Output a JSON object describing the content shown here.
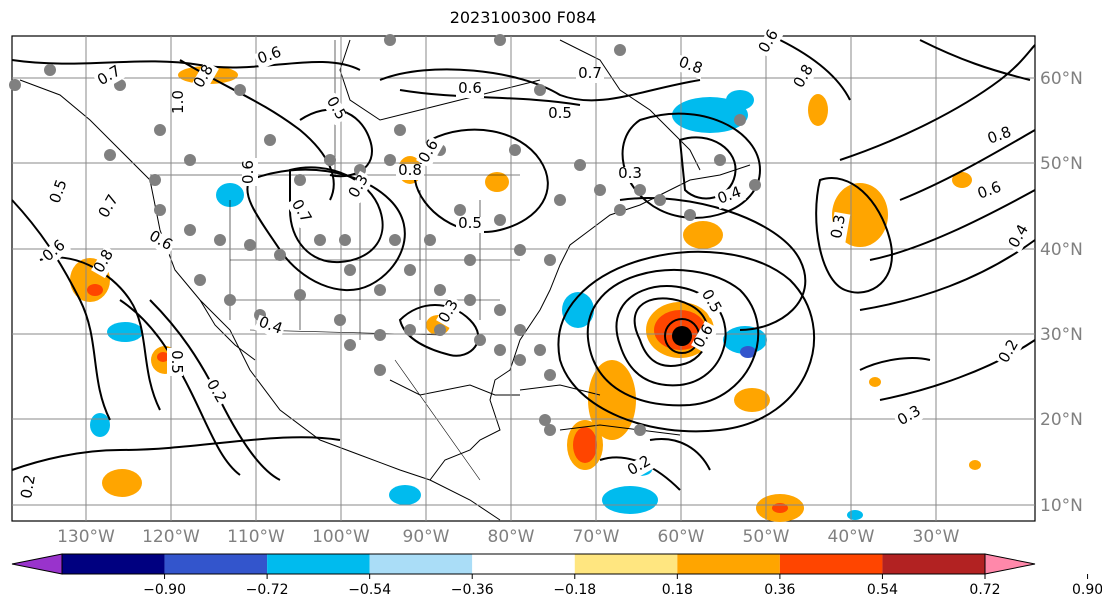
{
  "title": "2023100300 F084",
  "latitude_labels": [
    "60°N",
    "50°N",
    "40°N",
    "30°N",
    "20°N",
    "10°N"
  ],
  "longitude_labels": [
    "130°W",
    "120°W",
    "110°W",
    "100°W",
    "90°W",
    "80°W",
    "70°W",
    "60°W",
    "50°W",
    "40°W",
    "30°W"
  ],
  "contour_labels": [
    "0.6",
    "0.7",
    "0.8",
    "1.0",
    "0.6",
    "0.5",
    "0.8",
    "0.6",
    "0.5",
    "0.7",
    "0.6",
    "0.3",
    "0.7",
    "0.6",
    "0.5",
    "0.8",
    "0.4",
    "0.3",
    "0.4",
    "0.6",
    "0.5",
    "0.8",
    "0.2",
    "0.3",
    "0.2",
    "0.3",
    "0.3",
    "0.2",
    "0.4",
    "0.5",
    "0.6",
    "0.8",
    "0.2",
    "0.7",
    "0.6",
    "0.5",
    "0.8",
    "0.6"
  ],
  "colorbar": {
    "ticks": [
      "−0.90",
      "−0.72",
      "−0.54",
      "−0.36",
      "−0.18",
      "0.18",
      "0.36",
      "0.54",
      "0.72",
      "0.90"
    ],
    "colors": [
      "#9933cc",
      "#000080",
      "#3355cc",
      "#00bbee",
      "#aaddf7",
      "#ffffff",
      "#ffe680",
      "#ffa500",
      "#ff4500",
      "#b22222",
      "#ff88aa"
    ]
  }
}
